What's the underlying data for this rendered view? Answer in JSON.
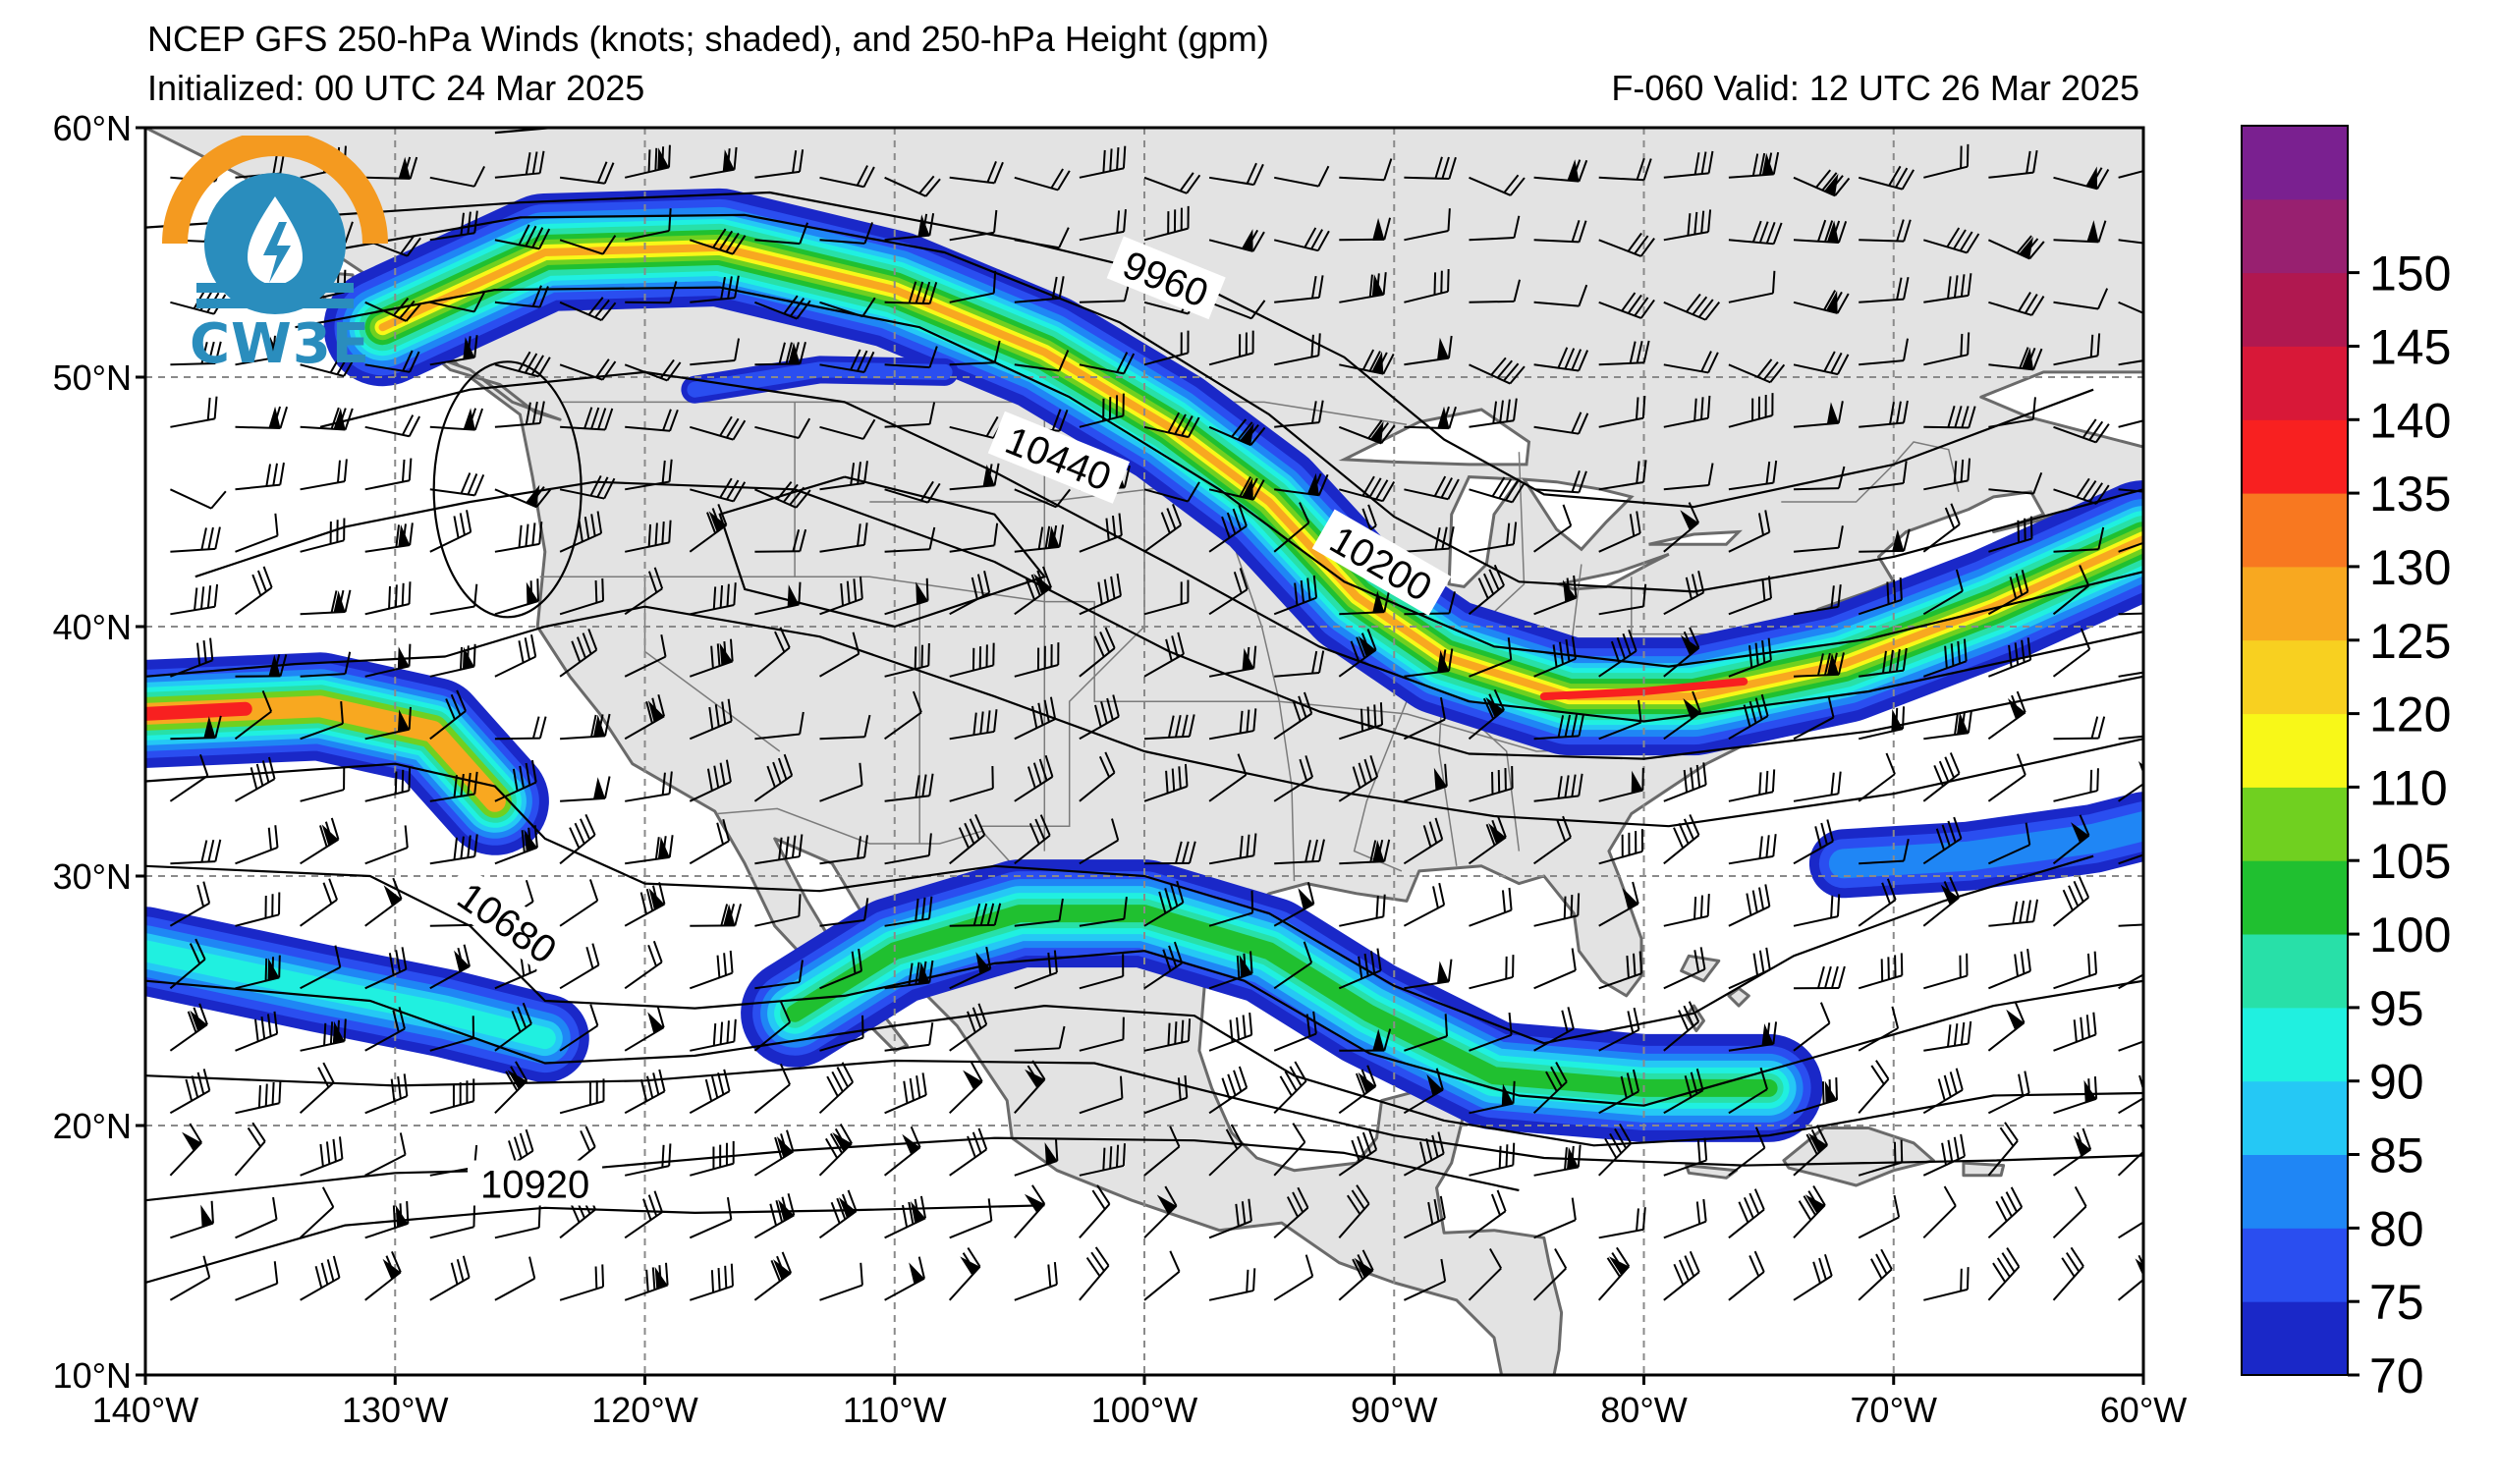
{
  "title": {
    "line1": "NCEP GFS 250-hPa Winds (knots; shaded), and 250-hPa Height (gpm)",
    "line2_left": "Initialized: 00 UTC 24 Mar 2025",
    "line2_right": "F-060  Valid: 12 UTC 26 Mar 2025"
  },
  "logo": {
    "text": "CW3E",
    "icon": "cw3e-water-lightning-logo-icon"
  },
  "axes": {
    "lon_ticks": [
      "140°W",
      "130°W",
      "120°W",
      "110°W",
      "100°W",
      "90°W",
      "80°W",
      "70°W",
      "60°W"
    ],
    "lat_ticks": [
      "60°N",
      "50°N",
      "40°N",
      "30°N",
      "20°N",
      "10°N"
    ],
    "lon_range": [
      -140,
      -60
    ],
    "lat_range": [
      10,
      60
    ],
    "gridlines": "dashed"
  },
  "colorbar": {
    "levels": [
      "70",
      "75",
      "80",
      "85",
      "90",
      "95",
      "100",
      "105",
      "110",
      "120",
      "125",
      "130",
      "135",
      "140",
      "145",
      "150"
    ],
    "colors": [
      "#1a28c8",
      "#2a4ef0",
      "#1f86f5",
      "#25c8f5",
      "#20f0e0",
      "#28e0a8",
      "#20c030",
      "#70d020",
      "#f8f818",
      "#f8d020",
      "#f8a820",
      "#f87820",
      "#f82020",
      "#d81838",
      "#b01850",
      "#982070",
      "#7a2090"
    ]
  },
  "contours": {
    "labels": [
      {
        "text": "9960",
        "lon": -99.2,
        "lat": 53.8,
        "angle": 22
      },
      {
        "text": "10440",
        "lon": -103.5,
        "lat": 46.6,
        "angle": 22
      },
      {
        "text": "10200",
        "lon": -90.6,
        "lat": 42.4,
        "angle": 30
      },
      {
        "text": "10680",
        "lon": -125.6,
        "lat": 28.0,
        "angle": 35
      },
      {
        "text": "10920",
        "lon": -124.4,
        "lat": 17.5,
        "angle": 0
      }
    ]
  },
  "map": {
    "land_color": "#e3e3e3",
    "ocean_color": "#ffffff",
    "coast_color": "#6a6a6a"
  }
}
